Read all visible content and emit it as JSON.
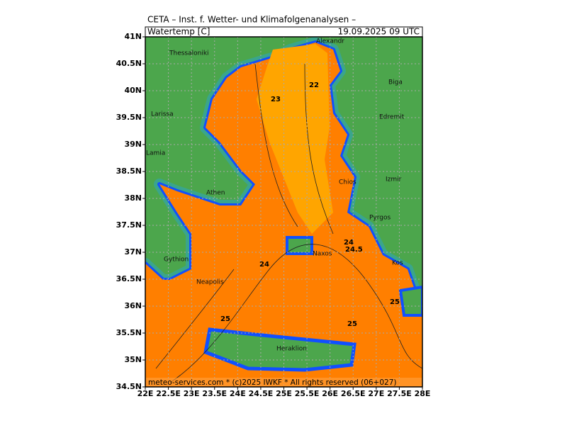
{
  "header": {
    "title": "CETA – Inst. f. Wetter- und Klimafolgenanalysen –",
    "parameter": "Watertemp [C]",
    "valid_time": "19.09.2025 09 UTC"
  },
  "axes": {
    "lon_ticks": [
      {
        "value": 22,
        "label": "22E"
      },
      {
        "value": 22.5,
        "label": "22.5E"
      },
      {
        "value": 23,
        "label": "23E"
      },
      {
        "value": 23.5,
        "label": "23.5E"
      },
      {
        "value": 24,
        "label": "24E"
      },
      {
        "value": 24.5,
        "label": "24.5E"
      },
      {
        "value": 25,
        "label": "25E"
      },
      {
        "value": 25.5,
        "label": "25.5E"
      },
      {
        "value": 26,
        "label": "26E"
      },
      {
        "value": 26.5,
        "label": "26.5E"
      },
      {
        "value": 27,
        "label": "27E"
      },
      {
        "value": 27.5,
        "label": "27.5E"
      },
      {
        "value": 28,
        "label": "28E"
      }
    ],
    "lat_ticks": [
      {
        "value": 41,
        "label": "41N"
      },
      {
        "value": 40.5,
        "label": "40.5N"
      },
      {
        "value": 40,
        "label": "40N"
      },
      {
        "value": 39.5,
        "label": "39.5N"
      },
      {
        "value": 39,
        "label": "39N"
      },
      {
        "value": 38.5,
        "label": "38.5N"
      },
      {
        "value": 38,
        "label": "38N"
      },
      {
        "value": 37.5,
        "label": "37.5N"
      },
      {
        "value": 37,
        "label": "37N"
      },
      {
        "value": 36.5,
        "label": "36.5N"
      },
      {
        "value": 36,
        "label": "36N"
      },
      {
        "value": 35.5,
        "label": "35.5N"
      },
      {
        "value": 35,
        "label": "35N"
      },
      {
        "value": 34.5,
        "label": "34.5N"
      }
    ],
    "lonlim": [
      22,
      28
    ],
    "latlim": [
      34.5,
      41
    ]
  },
  "places": [
    "Thessaloniki",
    "Alexandr",
    "Biga",
    "Larissa",
    "Edremit",
    "Lamia",
    "Chios",
    "Izmir",
    "Athen",
    "Pyrgos",
    "Naxos",
    "Gythion",
    "Kos",
    "Neapolis",
    "Heraklion"
  ],
  "contour_labels": [
    "22",
    "23",
    "24",
    "24.5",
    "24",
    "25",
    "25",
    "25"
  ],
  "footer": "meteo-services.com * (c)2025 IWKF * All rights reserved (06+027)"
}
